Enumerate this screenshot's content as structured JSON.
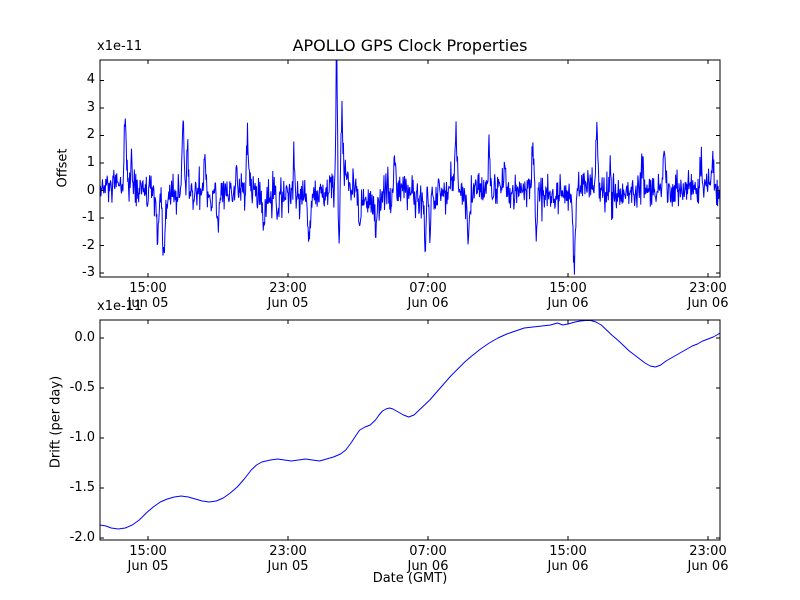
{
  "figure": {
    "background": "#ffffff",
    "line_color": "#0000ff",
    "axes_color": "#000000"
  },
  "chart_data": [
    {
      "type": "line",
      "title": "APOLLO GPS Clock Properties",
      "ylabel": "Offset",
      "y_offset_label": "x1e-11",
      "y_unit_scale": "1e-11",
      "xlim": [
        12.257,
        47.686
      ],
      "ylim": [
        -3.145,
        4.745
      ],
      "grid": false,
      "legend": "none",
      "x_ticks": [
        {
          "v": 15,
          "l1": "15:00",
          "l2": "Jun 05"
        },
        {
          "v": 23,
          "l1": "23:00",
          "l2": "Jun 05"
        },
        {
          "v": 31,
          "l1": "07:00",
          "l2": "Jun 06"
        },
        {
          "v": 39,
          "l1": "15:00",
          "l2": "Jun 06"
        },
        {
          "v": 47,
          "l1": "23:00",
          "l2": "Jun 06"
        }
      ],
      "y_ticks": [
        {
          "v": 4,
          "label": "4"
        },
        {
          "v": 3,
          "label": "3"
        },
        {
          "v": 2,
          "label": "2"
        },
        {
          "v": 1,
          "label": "1"
        },
        {
          "v": 0,
          "label": "0"
        },
        {
          "v": -1,
          "label": "-1"
        },
        {
          "v": -2,
          "label": "-2"
        },
        {
          "v": -3,
          "label": "-3"
        }
      ],
      "series_noise": {
        "description": "dense noisy clock offset trace, mean ~0, units 1e-11, with sharp spikes",
        "n_points": 1300,
        "seed": 12345,
        "std": 0.33,
        "wander": [
          [
            12.26,
            0.0
          ],
          [
            13.0,
            0.1
          ],
          [
            13.8,
            0.15
          ],
          [
            14.6,
            0.05
          ],
          [
            15.2,
            -0.2
          ],
          [
            15.8,
            -0.35
          ],
          [
            16.4,
            -0.2
          ],
          [
            17.0,
            0.05
          ],
          [
            17.6,
            -0.05
          ],
          [
            18.2,
            -0.1
          ],
          [
            18.8,
            -0.2
          ],
          [
            19.4,
            -0.1
          ],
          [
            20.0,
            0.0
          ],
          [
            20.6,
            -0.05
          ],
          [
            21.2,
            -0.15
          ],
          [
            21.8,
            -0.2
          ],
          [
            22.4,
            -0.1
          ],
          [
            23.0,
            -0.25
          ],
          [
            23.6,
            -0.3
          ],
          [
            24.2,
            -0.2
          ],
          [
            24.8,
            -0.1
          ],
          [
            25.4,
            0.0
          ],
          [
            25.9,
            0.3
          ],
          [
            26.3,
            0.45
          ],
          [
            26.8,
            0.1
          ],
          [
            27.3,
            -0.3
          ],
          [
            27.9,
            -0.45
          ],
          [
            28.5,
            -0.2
          ],
          [
            29.1,
            0.0
          ],
          [
            29.7,
            -0.1
          ],
          [
            30.3,
            -0.2
          ],
          [
            30.9,
            -0.35
          ],
          [
            31.5,
            -0.05
          ],
          [
            32.1,
            0.1
          ],
          [
            32.7,
            0.05
          ],
          [
            33.3,
            -0.2
          ],
          [
            33.9,
            -0.05
          ],
          [
            34.5,
            0.1
          ],
          [
            35.1,
            0.0
          ],
          [
            35.7,
            -0.1
          ],
          [
            36.3,
            0.0
          ],
          [
            36.9,
            0.1
          ],
          [
            37.5,
            -0.1
          ],
          [
            38.1,
            -0.2
          ],
          [
            38.7,
            -0.15
          ],
          [
            39.3,
            -0.1
          ],
          [
            39.9,
            0.25
          ],
          [
            40.5,
            0.3
          ],
          [
            41.1,
            -0.1
          ],
          [
            41.7,
            -0.35
          ],
          [
            42.3,
            -0.15
          ],
          [
            42.9,
            0.0
          ],
          [
            43.5,
            0.1
          ],
          [
            44.1,
            0.0
          ],
          [
            44.7,
            -0.05
          ],
          [
            45.3,
            0.0
          ],
          [
            45.9,
            0.1
          ],
          [
            46.5,
            -0.05
          ],
          [
            47.1,
            0.1
          ],
          [
            47.69,
            -0.1
          ]
        ],
        "spikes": [
          [
            13.7,
            2.5,
            0.08
          ],
          [
            14.05,
            1.1,
            0.06
          ],
          [
            15.55,
            -1.4,
            0.08
          ],
          [
            15.9,
            -2.45,
            0.1
          ],
          [
            17.0,
            2.3,
            0.08
          ],
          [
            17.25,
            1.6,
            0.06
          ],
          [
            18.25,
            1.6,
            0.07
          ],
          [
            19.0,
            -1.1,
            0.07
          ],
          [
            20.05,
            1.1,
            0.06
          ],
          [
            20.7,
            2.1,
            0.08
          ],
          [
            21.6,
            -1.3,
            0.08
          ],
          [
            22.4,
            -1.1,
            0.07
          ],
          [
            23.35,
            1.3,
            0.07
          ],
          [
            24.2,
            -1.45,
            0.1
          ],
          [
            25.78,
            4.8,
            0.06
          ],
          [
            25.92,
            -2.2,
            0.07
          ],
          [
            26.08,
            2.0,
            0.09
          ],
          [
            27.1,
            -1.1,
            0.08
          ],
          [
            28.0,
            -1.2,
            0.07
          ],
          [
            29.1,
            1.2,
            0.07
          ],
          [
            30.85,
            -1.7,
            0.05
          ],
          [
            31.1,
            -1.7,
            0.05
          ],
          [
            32.6,
            2.1,
            0.08
          ],
          [
            33.3,
            -1.5,
            0.09
          ],
          [
            34.5,
            1.4,
            0.07
          ],
          [
            35.4,
            1.1,
            0.06
          ],
          [
            37.0,
            1.7,
            0.07
          ],
          [
            37.2,
            -1.9,
            0.07
          ],
          [
            39.35,
            -2.7,
            0.09
          ],
          [
            40.65,
            2.1,
            0.07
          ],
          [
            41.4,
            1.2,
            0.06
          ],
          [
            43.25,
            1.4,
            0.07
          ],
          [
            44.5,
            1.3,
            0.07
          ],
          [
            46.6,
            1.3,
            0.08
          ],
          [
            47.3,
            1.2,
            0.07
          ]
        ]
      }
    },
    {
      "type": "line",
      "xlabel": "Date (GMT)",
      "ylabel": "Drift (per day)",
      "y_offset_label": "x1e-11",
      "y_unit_scale": "1e-11",
      "xlim": [
        12.257,
        47.686
      ],
      "ylim": [
        -2.02,
        0.18
      ],
      "grid": false,
      "legend": "none",
      "x_ticks": [
        {
          "v": 15,
          "l1": "15:00",
          "l2": "Jun 05"
        },
        {
          "v": 23,
          "l1": "23:00",
          "l2": "Jun 05"
        },
        {
          "v": 31,
          "l1": "07:00",
          "l2": "Jun 06"
        },
        {
          "v": 39,
          "l1": "15:00",
          "l2": "Jun 06"
        },
        {
          "v": 47,
          "l1": "23:00",
          "l2": "Jun 06"
        }
      ],
      "y_ticks": [
        {
          "v": 0,
          "label": "0.0"
        },
        {
          "v": -0.5,
          "label": "-0.5"
        },
        {
          "v": -1,
          "label": "-1.0"
        },
        {
          "v": -1.5,
          "label": "-1.5"
        },
        {
          "v": -2,
          "label": "-2.0"
        }
      ],
      "points": [
        [
          12.26,
          -1.87
        ],
        [
          12.6,
          -1.88
        ],
        [
          12.9,
          -1.9
        ],
        [
          13.3,
          -1.91
        ],
        [
          13.7,
          -1.9
        ],
        [
          14.1,
          -1.87
        ],
        [
          14.5,
          -1.82
        ],
        [
          14.9,
          -1.75
        ],
        [
          15.3,
          -1.69
        ],
        [
          15.7,
          -1.64
        ],
        [
          16.1,
          -1.61
        ],
        [
          16.5,
          -1.59
        ],
        [
          16.9,
          -1.58
        ],
        [
          17.3,
          -1.59
        ],
        [
          17.7,
          -1.61
        ],
        [
          18.1,
          -1.63
        ],
        [
          18.5,
          -1.64
        ],
        [
          18.9,
          -1.63
        ],
        [
          19.3,
          -1.6
        ],
        [
          19.7,
          -1.55
        ],
        [
          20.1,
          -1.49
        ],
        [
          20.5,
          -1.41
        ],
        [
          20.9,
          -1.32
        ],
        [
          21.2,
          -1.27
        ],
        [
          21.5,
          -1.24
        ],
        [
          22.0,
          -1.22
        ],
        [
          22.4,
          -1.21
        ],
        [
          22.8,
          -1.22
        ],
        [
          23.2,
          -1.23
        ],
        [
          23.6,
          -1.22
        ],
        [
          24.0,
          -1.21
        ],
        [
          24.4,
          -1.22
        ],
        [
          24.8,
          -1.23
        ],
        [
          25.2,
          -1.21
        ],
        [
          25.6,
          -1.19
        ],
        [
          26.0,
          -1.16
        ],
        [
          26.3,
          -1.12
        ],
        [
          26.6,
          -1.05
        ],
        [
          26.9,
          -0.97
        ],
        [
          27.1,
          -0.92
        ],
        [
          27.4,
          -0.89
        ],
        [
          27.7,
          -0.87
        ],
        [
          28.0,
          -0.82
        ],
        [
          28.2,
          -0.77
        ],
        [
          28.4,
          -0.73
        ],
        [
          28.6,
          -0.71
        ],
        [
          28.8,
          -0.7
        ],
        [
          29.0,
          -0.71
        ],
        [
          29.3,
          -0.74
        ],
        [
          29.6,
          -0.77
        ],
        [
          29.9,
          -0.79
        ],
        [
          30.2,
          -0.77
        ],
        [
          30.5,
          -0.72
        ],
        [
          30.8,
          -0.67
        ],
        [
          31.1,
          -0.62
        ],
        [
          31.5,
          -0.54
        ],
        [
          31.9,
          -0.46
        ],
        [
          32.3,
          -0.38
        ],
        [
          32.7,
          -0.31
        ],
        [
          33.1,
          -0.24
        ],
        [
          33.5,
          -0.18
        ],
        [
          34.0,
          -0.11
        ],
        [
          34.5,
          -0.05
        ],
        [
          35.0,
          0.0
        ],
        [
          35.5,
          0.04
        ],
        [
          36.0,
          0.07
        ],
        [
          36.5,
          0.1
        ],
        [
          37.0,
          0.11
        ],
        [
          37.5,
          0.12
        ],
        [
          38.0,
          0.13
        ],
        [
          38.4,
          0.15
        ],
        [
          38.7,
          0.13
        ],
        [
          39.0,
          0.14
        ],
        [
          39.4,
          0.16
        ],
        [
          39.7,
          0.17
        ],
        [
          40.0,
          0.175
        ],
        [
          40.3,
          0.175
        ],
        [
          40.6,
          0.16
        ],
        [
          40.9,
          0.13
        ],
        [
          41.2,
          0.08
        ],
        [
          41.5,
          0.03
        ],
        [
          41.9,
          -0.03
        ],
        [
          42.2,
          -0.08
        ],
        [
          42.5,
          -0.13
        ],
        [
          42.8,
          -0.17
        ],
        [
          43.1,
          -0.21
        ],
        [
          43.4,
          -0.25
        ],
        [
          43.7,
          -0.28
        ],
        [
          44.0,
          -0.29
        ],
        [
          44.3,
          -0.27
        ],
        [
          44.6,
          -0.23
        ],
        [
          44.9,
          -0.2
        ],
        [
          45.2,
          -0.17
        ],
        [
          45.5,
          -0.14
        ],
        [
          45.8,
          -0.11
        ],
        [
          46.1,
          -0.08
        ],
        [
          46.4,
          -0.06
        ],
        [
          46.7,
          -0.03
        ],
        [
          47.0,
          -0.01
        ],
        [
          47.3,
          0.01
        ],
        [
          47.5,
          0.03
        ],
        [
          47.69,
          0.05
        ]
      ]
    }
  ]
}
